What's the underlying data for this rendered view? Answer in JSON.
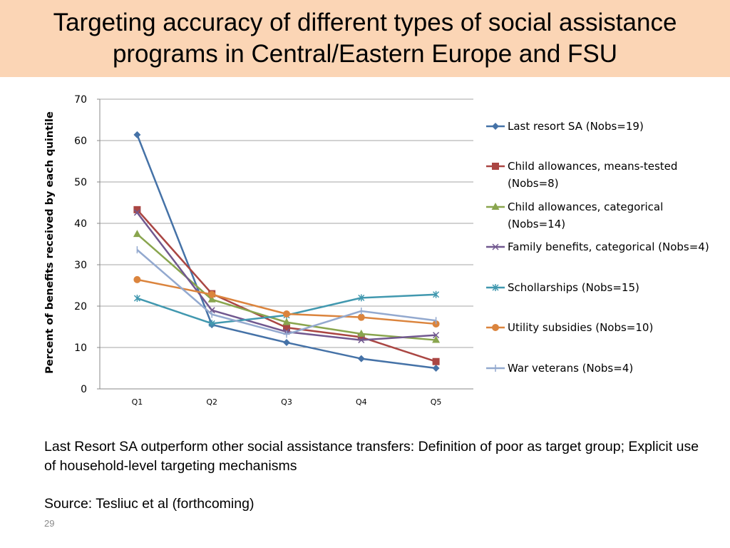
{
  "title_line1": "Targeting accuracy of different types of social assistance",
  "title_line2": "programs in Central/Eastern Europe and FSU",
  "chart_data": {
    "type": "line",
    "title": "",
    "ylabel": "Percent of benefits received by each quintile",
    "xlabel": "",
    "categories": [
      "Q1",
      "Q2",
      "Q3",
      "Q4",
      "Q5"
    ],
    "ylim": [
      0,
      70
    ],
    "yticks": [
      0,
      10,
      20,
      30,
      40,
      50,
      60,
      70
    ],
    "grid": true,
    "legend_position": "right",
    "series": [
      {
        "name": "Last resort SA (Nobs=19)",
        "color": "#4572a7",
        "marker": "diamond",
        "values": [
          61.4,
          15.5,
          11.2,
          7.3,
          5.0
        ]
      },
      {
        "name": "Child allowances, means-tested (Nobs=8)",
        "color": "#aa4643",
        "marker": "square",
        "values": [
          43.3,
          23.0,
          14.8,
          12.5,
          6.6
        ]
      },
      {
        "name": "Child allowances, categorical (Nobs=14)",
        "color": "#89a54e",
        "marker": "triangle",
        "values": [
          37.4,
          21.6,
          16.1,
          13.3,
          11.8
        ]
      },
      {
        "name": "Family benefits, categorical (Nobs=4)",
        "color": "#71588f",
        "marker": "x",
        "values": [
          42.6,
          19.0,
          13.8,
          11.8,
          13.0
        ]
      },
      {
        "name": "Schollarships (Nobs=15)",
        "color": "#4198af",
        "marker": "star",
        "values": [
          21.9,
          15.8,
          17.8,
          22.0,
          22.8
        ]
      },
      {
        "name": "Utility subsidies (Nobs=10)",
        "color": "#db843d",
        "marker": "circle",
        "values": [
          26.4,
          22.8,
          18.1,
          17.3,
          15.7
        ]
      },
      {
        "name": "War veterans (Nobs=4)",
        "color": "#93a9cf",
        "marker": "plus",
        "values": [
          33.6,
          18.0,
          13.2,
          18.8,
          16.5
        ]
      }
    ]
  },
  "legend_lines": [
    [
      "Last resort SA (Nobs=19)"
    ],
    [
      "Child allowances, means-tested",
      "(Nobs=8)"
    ],
    [
      "Child allowances, categorical",
      "(Nobs=14)"
    ],
    [
      "Family benefits, categorical (Nobs=4)"
    ],
    [
      "Schollarships (Nobs=15)"
    ],
    [
      "Utility subsidies (Nobs=10)"
    ],
    [
      "War veterans (Nobs=4)"
    ]
  ],
  "note": "Last Resort SA  outperform other social assistance transfers: Definition of poor as target group; Explicit use of household-level targeting mechanisms",
  "source": "Source: Tesliuc et al (forthcoming)",
  "page_number": "29"
}
